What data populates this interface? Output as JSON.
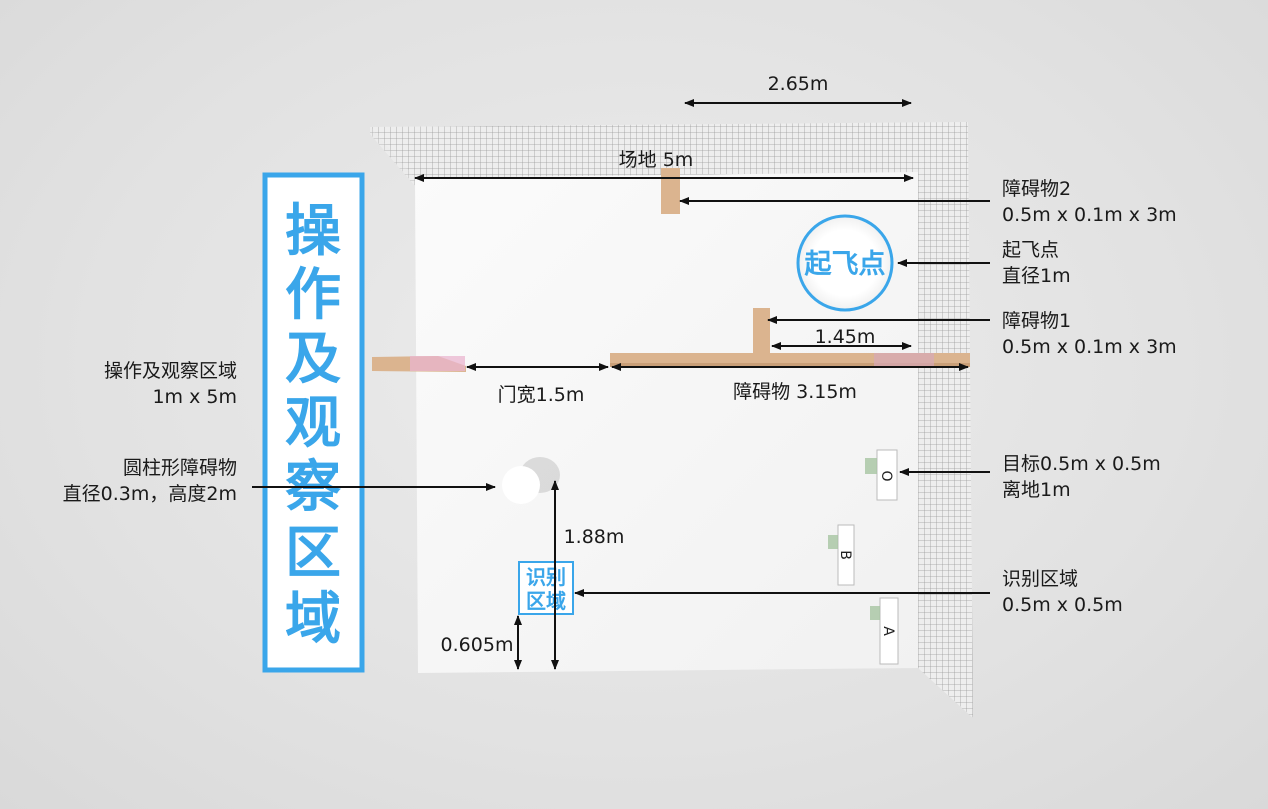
{
  "colors": {
    "accent": "#3aa6ea",
    "obstacle": "#dbb48f",
    "wall": "#9a9a9a",
    "floor": "#f7f7f7"
  },
  "operation_banner": {
    "chars": [
      "操",
      "作",
      "及",
      "观",
      "察",
      "区",
      "域"
    ]
  },
  "dimensions": {
    "top_width": "2.65m",
    "field_length": "场地 5m",
    "obstacle1_offset": "1.45m",
    "door_width": "门宽1.5m",
    "obstacle_length": "障碍物 3.15m",
    "cylinder_distance": "1.88m",
    "zone_offset": "0.605m"
  },
  "labels": {
    "obstacle2": {
      "title": "障碍物2",
      "size": "0.5m x 0.1m x 3m"
    },
    "takeoff": {
      "title": "起飞点",
      "size": "直径1m"
    },
    "obstacle1": {
      "title": "障碍物1",
      "size": "0.5m x 0.1m x 3m"
    },
    "target": {
      "title": "目标0.5m x 0.5m",
      "size": "离地1m"
    },
    "recognition": {
      "title": "识别区域",
      "size": "0.5m x 0.5m"
    },
    "operation_area": {
      "title": "操作及观察区域",
      "size": "1m x 5m"
    },
    "cylinder": {
      "title": "圆柱形障碍物",
      "size": "直径0.3m，高度2m"
    }
  },
  "takeoff_pad": {
    "text": "起飞点"
  },
  "recognition_zone": {
    "line1": "识别",
    "line2": "区域"
  },
  "targets": [
    "O",
    "B",
    "A"
  ]
}
